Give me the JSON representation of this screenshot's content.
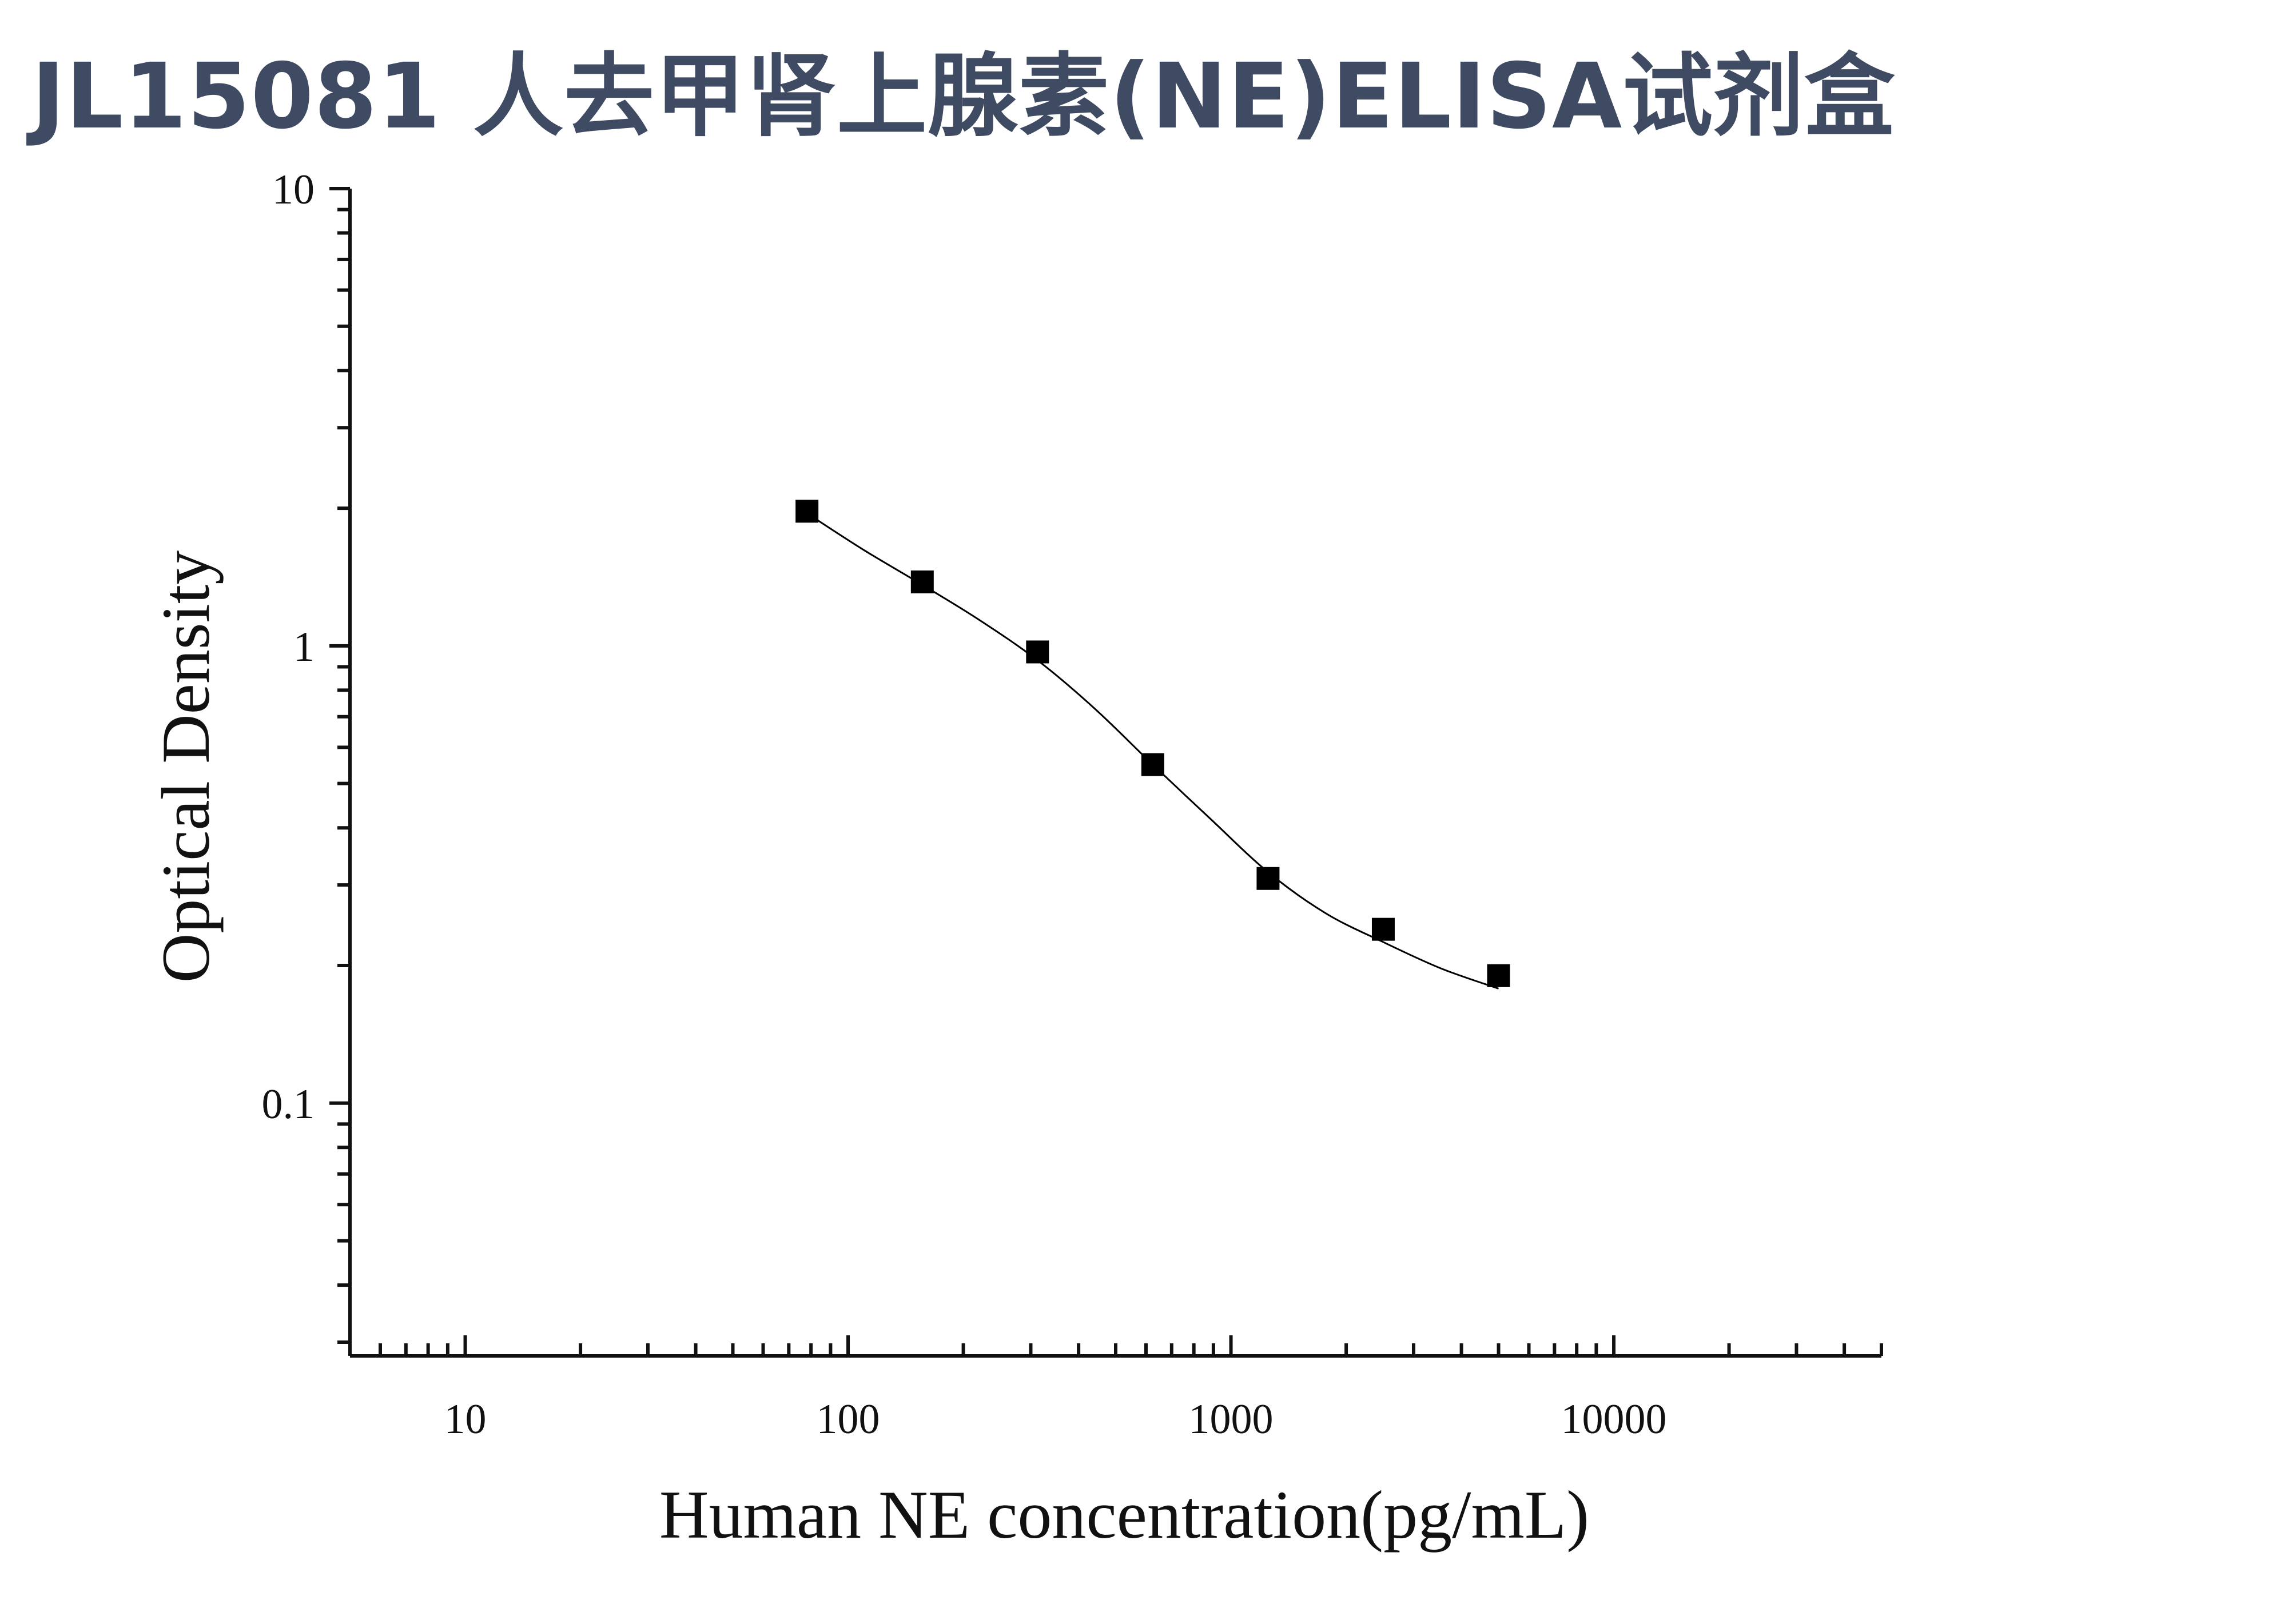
{
  "page": {
    "title": "JL15081 人去甲肾上腺素(NE)ELISA试剂盒"
  },
  "chart_data": {
    "type": "scatter",
    "title": "",
    "xlabel": "Human NE concentration(pg/mL)",
    "ylabel": "Optical Density",
    "xscale": "log",
    "yscale": "log",
    "xlim": [
      5,
      50000
    ],
    "ylim": [
      0.028,
      10
    ],
    "x_ticks": [
      10,
      100,
      1000,
      10000
    ],
    "x_tick_labels": [
      "10",
      "100",
      "1000",
      "10000"
    ],
    "y_ticks": [
      0.1,
      1,
      10
    ],
    "y_tick_labels": [
      "0.1",
      "1",
      "10"
    ],
    "grid": false,
    "legend": "none",
    "colors": {
      "marker": "#000000",
      "curve": "#000000",
      "title": "#3f4a63"
    },
    "series": [
      {
        "marker": "square",
        "x": [
          78.1,
          156.25,
          312.5,
          625,
          1250,
          2500,
          5000
        ],
        "y": [
          1.97,
          1.38,
          0.97,
          0.55,
          0.31,
          0.24,
          0.19
        ]
      }
    ],
    "fit_curve": {
      "model": "4PL",
      "x": [
        78.1,
        110,
        156.25,
        220,
        312.5,
        440,
        625,
        880,
        1250,
        1770,
        2500,
        3540,
        5000
      ],
      "y": [
        1.95,
        1.62,
        1.36,
        1.14,
        0.93,
        0.73,
        0.55,
        0.42,
        0.32,
        0.26,
        0.225,
        0.197,
        0.178
      ]
    }
  }
}
